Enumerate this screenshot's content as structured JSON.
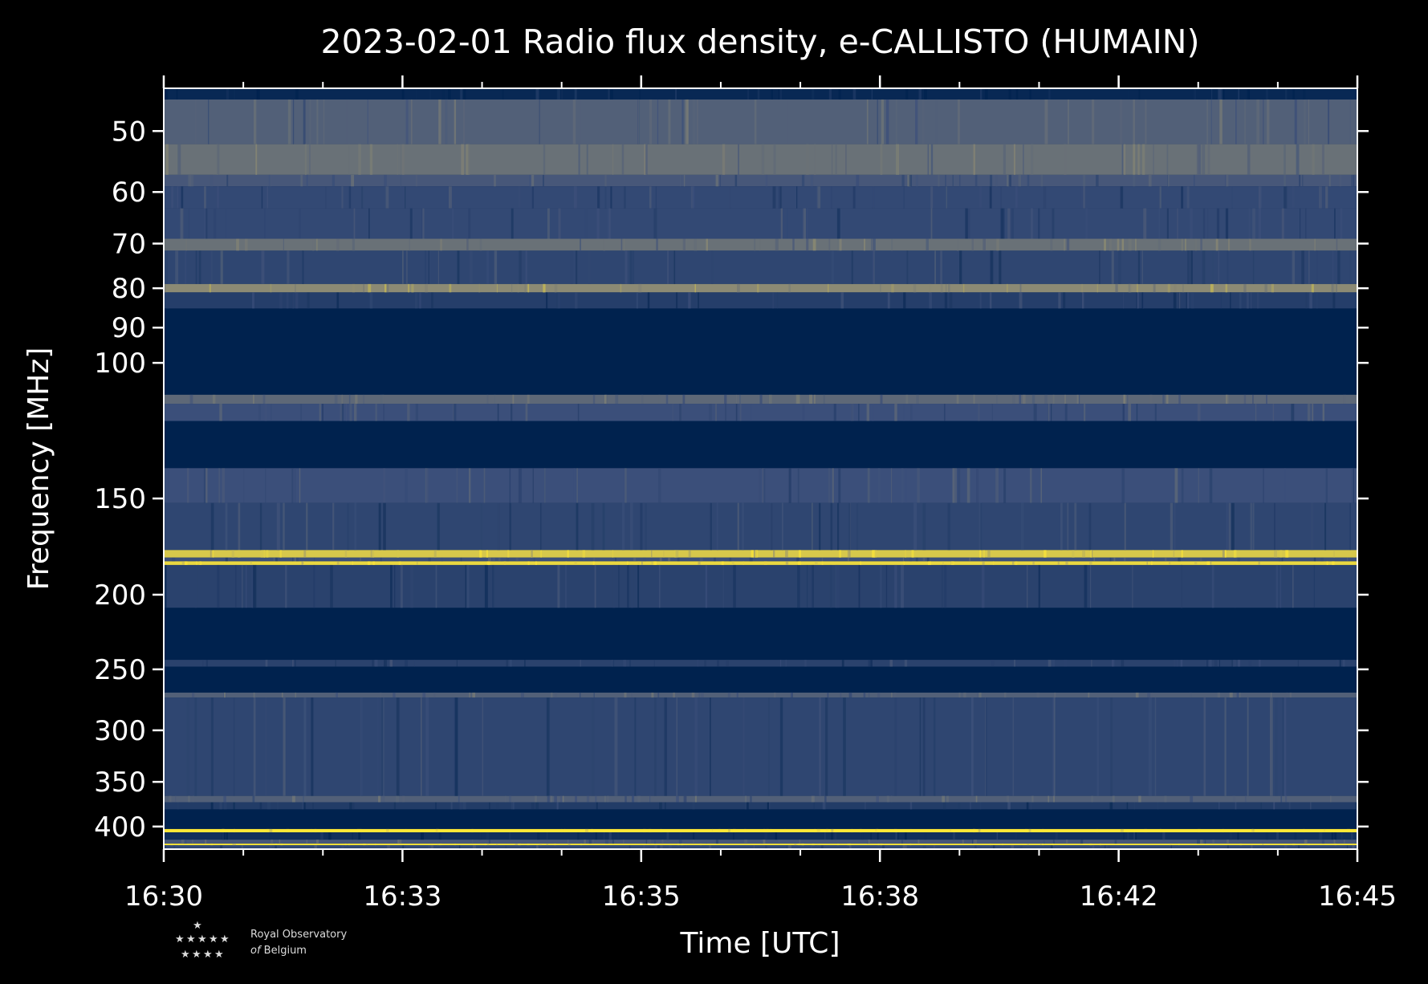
{
  "chart_data": {
    "type": "heatmap",
    "title": "2023-02-01 Radio flux density, e-CALLISTO (HUMAIN)",
    "xlabel": "Time [UTC]",
    "ylabel": "Frequency [MHz]",
    "x_ticks": [
      "16:30",
      "16:33",
      "16:35",
      "16:38",
      "16:42",
      "16:45"
    ],
    "y_ticks": [
      50,
      60,
      70,
      80,
      90,
      100,
      150,
      200,
      250,
      300,
      350,
      400
    ],
    "y_scale": "log",
    "x_range": [
      "16:30",
      "16:45"
    ],
    "y_range_mhz": [
      44,
      428
    ],
    "y_inverted": true,
    "colormap": "cividis",
    "colors": {
      "low": "#00224e",
      "mid": "#3b4f7a",
      "high_mid": "#8c8a74",
      "high": "#fde737"
    },
    "bands_mhz": [
      {
        "lo": 44.0,
        "hi": 45.5,
        "level": 0.05
      },
      {
        "lo": 45.5,
        "hi": 52.0,
        "level": 0.45
      },
      {
        "lo": 52.0,
        "hi": 57.0,
        "level": 0.55
      },
      {
        "lo": 57.0,
        "hi": 59.0,
        "level": 0.4
      },
      {
        "lo": 59.0,
        "hi": 63.0,
        "level": 0.3
      },
      {
        "lo": 63.0,
        "hi": 69.0,
        "level": 0.3
      },
      {
        "lo": 69.0,
        "hi": 71.5,
        "level": 0.55
      },
      {
        "lo": 71.5,
        "hi": 79.0,
        "level": 0.28
      },
      {
        "lo": 79.0,
        "hi": 81.0,
        "level": 0.7
      },
      {
        "lo": 81.0,
        "hi": 85.0,
        "level": 0.22
      },
      {
        "lo": 85.0,
        "hi": 110.0,
        "level": 0.0
      },
      {
        "lo": 110.0,
        "hi": 113.0,
        "level": 0.5
      },
      {
        "lo": 113.0,
        "hi": 119.0,
        "level": 0.35
      },
      {
        "lo": 119.0,
        "hi": 137.0,
        "level": 0.0
      },
      {
        "lo": 137.0,
        "hi": 152.0,
        "level": 0.35
      },
      {
        "lo": 152.0,
        "hi": 175.0,
        "level": 0.28
      },
      {
        "lo": 175.0,
        "hi": 179.0,
        "level": 0.9
      },
      {
        "lo": 179.0,
        "hi": 181.0,
        "level": 0.35
      },
      {
        "lo": 181.0,
        "hi": 183.0,
        "level": 0.95
      },
      {
        "lo": 183.0,
        "hi": 208.0,
        "level": 0.25
      },
      {
        "lo": 208.0,
        "hi": 243.0,
        "level": 0.0
      },
      {
        "lo": 243.0,
        "hi": 248.0,
        "level": 0.25
      },
      {
        "lo": 248.0,
        "hi": 268.0,
        "level": 0.0
      },
      {
        "lo": 268.0,
        "hi": 272.0,
        "level": 0.45
      },
      {
        "lo": 272.0,
        "hi": 365.0,
        "level": 0.28
      },
      {
        "lo": 365.0,
        "hi": 372.0,
        "level": 0.45
      },
      {
        "lo": 372.0,
        "hi": 380.0,
        "level": 0.2
      },
      {
        "lo": 380.0,
        "hi": 403.0,
        "level": 0.0
      },
      {
        "lo": 403.0,
        "hi": 407.0,
        "level": 1.0
      },
      {
        "lo": 407.0,
        "hi": 416.0,
        "level": 0.1
      },
      {
        "lo": 416.0,
        "hi": 421.0,
        "level": 0.4
      },
      {
        "lo": 421.0,
        "hi": 423.0,
        "level": 1.0
      },
      {
        "lo": 423.0,
        "hi": 428.0,
        "level": 0.3
      }
    ]
  },
  "logo": {
    "line1": "Royal Observatory",
    "line2_italic": "of",
    "line2": "Belgium"
  }
}
